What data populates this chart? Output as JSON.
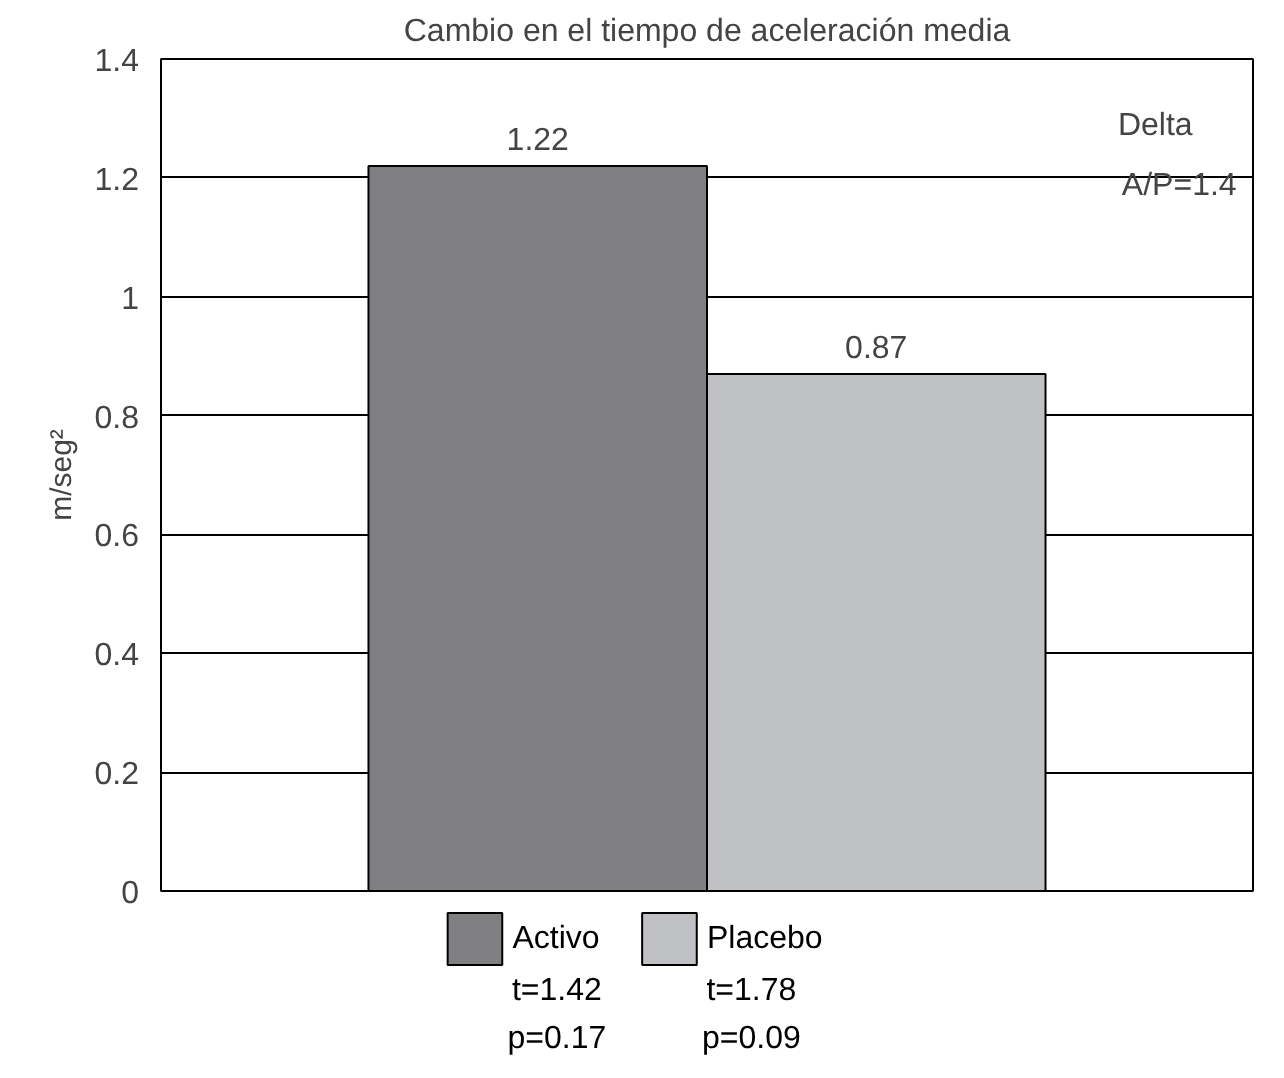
{
  "chart_data": {
    "type": "bar",
    "title": "Cambio en el tiempo de aceleración media",
    "ylabel": "m/seg²",
    "categories": [
      null
    ],
    "series": [
      {
        "name": "Activo",
        "color": "#808083",
        "values": [
          1.22
        ]
      },
      {
        "name": "Placebo",
        "color": "#c0c1c4",
        "values": [
          0.87
        ]
      }
    ],
    "ylim": [
      0,
      1.4
    ],
    "yticks": [
      0,
      0.2,
      0.4,
      0.6,
      0.8,
      1,
      1.2,
      1.4
    ],
    "grid": "y",
    "data_labels": true,
    "legend": "bottom",
    "annotations": [
      "Delta\nA/P=1.4",
      "t=1.42\np=0.17",
      "t=1.78\np=0.09"
    ]
  }
}
